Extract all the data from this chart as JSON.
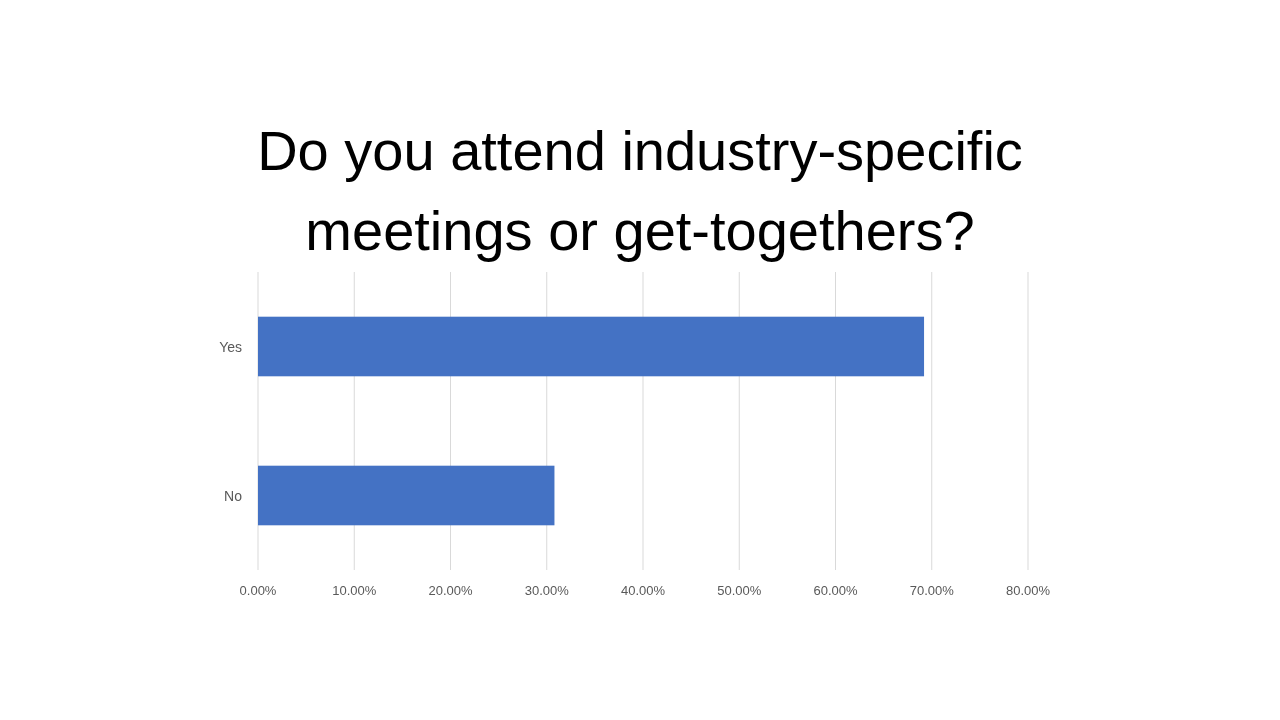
{
  "chart_data": {
    "type": "bar",
    "orientation": "horizontal",
    "title": "Do you attend industry-specific meetings or get-togethers?",
    "categories": [
      "Yes",
      "No"
    ],
    "values": [
      69.2,
      30.8
    ],
    "color": "#4472c4",
    "xlim": [
      0,
      80
    ],
    "xticks": [
      {
        "value": 0,
        "label": "0.00%"
      },
      {
        "value": 10,
        "label": "10.00%"
      },
      {
        "value": 20,
        "label": "20.00%"
      },
      {
        "value": 30,
        "label": "30.00%"
      },
      {
        "value": 40,
        "label": "40.00%"
      },
      {
        "value": 50,
        "label": "50.00%"
      },
      {
        "value": 60,
        "label": "60.00%"
      },
      {
        "value": 70,
        "label": "70.00%"
      },
      {
        "value": 80,
        "label": "80.00%"
      }
    ],
    "grid": "x"
  }
}
